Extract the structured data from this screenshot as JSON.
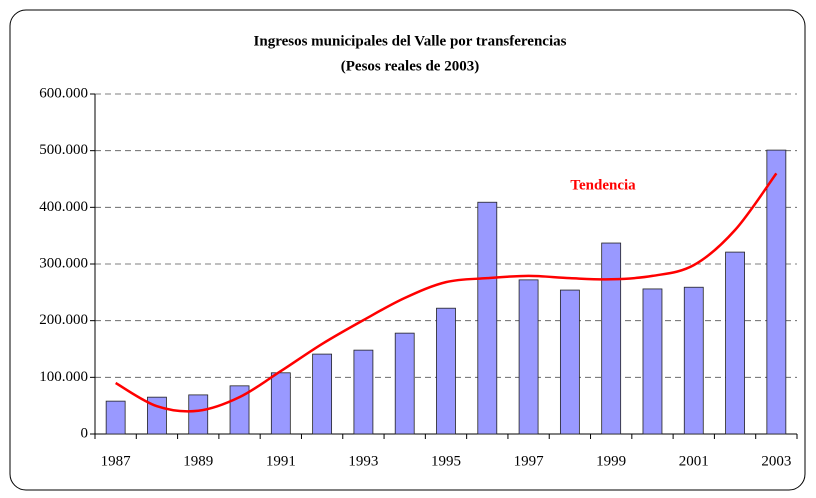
{
  "chart_data": {
    "type": "bar",
    "title": "Ingresos municipales  del Valle por transferencias",
    "subtitle": "(Pesos reales de 2003)",
    "categories": [
      "1987",
      null,
      "1989",
      null,
      "1991",
      null,
      "1993",
      null,
      "1995",
      null,
      "1997",
      null,
      "1999",
      null,
      "2001",
      null,
      "2003"
    ],
    "series": [
      {
        "type": "bar",
        "color": "#9999ff",
        "values": [
          58000,
          65000,
          69000,
          85000,
          108000,
          141000,
          148000,
          178000,
          222000,
          409000,
          272000,
          254000,
          337000,
          256000,
          259000,
          321000,
          501000
        ]
      },
      {
        "type": "line",
        "name": "Tendencia",
        "color": "#ff0000",
        "values": [
          90000,
          49000,
          41000,
          65000,
          111000,
          159000,
          201000,
          240000,
          268000,
          275000,
          279000,
          275000,
          273000,
          279000,
          298000,
          360000,
          460000
        ]
      }
    ],
    "ylim": [
      0,
      600000
    ],
    "yticks": [
      0,
      {
        "value": 100000,
        "label": "100.000"
      },
      {
        "value": 200000,
        "label": "200.000"
      },
      {
        "value": 300000,
        "label": "300.000"
      },
      {
        "value": 400000,
        "label": "400.000"
      },
      {
        "value": 500000,
        "label": "500.000"
      },
      {
        "value": 600000,
        "label": "600.000"
      }
    ],
    "grid": true
  }
}
